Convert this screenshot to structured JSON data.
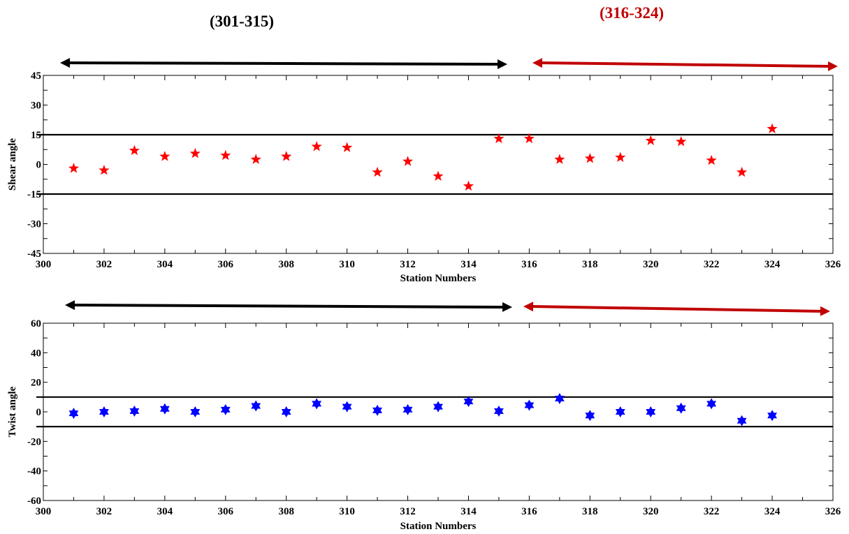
{
  "group_labels": {
    "first": "(301-315)",
    "second": "(316-324)"
  },
  "colors": {
    "first_group_arrow": "#000000",
    "second_group_arrow": "#c00000",
    "second_group_label": "#c00000",
    "shear_markers": "#ff0000",
    "twist_markers": "#0000ff",
    "threshold_lines": "#000000"
  },
  "chart_data": [
    {
      "type": "scatter",
      "marker": "five-point-star",
      "xlabel": "Station Numbers",
      "ylabel": "Shear angle",
      "xlim": [
        300,
        326
      ],
      "ylim": [
        -45,
        45
      ],
      "x_ticks": [
        "300",
        "302",
        "304",
        "306",
        "308",
        "310",
        "312",
        "314",
        "316",
        "318",
        "320",
        "322",
        "324",
        "326"
      ],
      "y_ticks": [
        "45",
        "30",
        "15",
        "0",
        "-15",
        "-30",
        "-45"
      ],
      "thresholds": [
        15,
        -15
      ],
      "x": [
        301,
        302,
        303,
        304,
        305,
        306,
        307,
        308,
        309,
        310,
        311,
        312,
        313,
        314,
        315,
        316,
        317,
        318,
        319,
        320,
        321,
        322,
        323,
        324
      ],
      "y": [
        -2,
        -3,
        7,
        4,
        5.5,
        4.5,
        2.5,
        4,
        9,
        8.5,
        -4,
        1.5,
        -6,
        -11,
        13,
        13,
        2.5,
        3,
        3.5,
        12,
        11.5,
        2,
        -4,
        18
      ],
      "range_arrows": [
        {
          "from": 301,
          "to": 315,
          "color": "#000000"
        },
        {
          "from": 316,
          "to": 324,
          "color": "#c00000"
        }
      ]
    },
    {
      "type": "scatter",
      "marker": "six-point-star",
      "xlabel": "Station Numbers",
      "ylabel": "Twist angle",
      "xlim": [
        300,
        326
      ],
      "ylim": [
        -60,
        60
      ],
      "x_ticks": [
        "300",
        "302",
        "304",
        "306",
        "308",
        "310",
        "312",
        "314",
        "316",
        "318",
        "320",
        "322",
        "324",
        "326"
      ],
      "y_ticks": [
        "60",
        "40",
        "20",
        "0",
        "-20",
        "-40",
        "-60"
      ],
      "thresholds": [
        10,
        -10
      ],
      "x": [
        301,
        302,
        303,
        304,
        305,
        306,
        307,
        308,
        309,
        310,
        311,
        312,
        313,
        314,
        315,
        316,
        317,
        318,
        319,
        320,
        321,
        322,
        323,
        324
      ],
      "y": [
        -1,
        0,
        0.5,
        2,
        0,
        1.5,
        4,
        0,
        5.5,
        3.5,
        1,
        1.5,
        3.5,
        7,
        0.5,
        4.5,
        9,
        -2.5,
        0,
        0,
        2.5,
        5.5,
        -6,
        -2.5
      ],
      "range_arrows": [
        {
          "from": 301,
          "to": 315,
          "color": "#000000"
        },
        {
          "from": 316,
          "to": 324,
          "color": "#c00000"
        }
      ]
    }
  ]
}
